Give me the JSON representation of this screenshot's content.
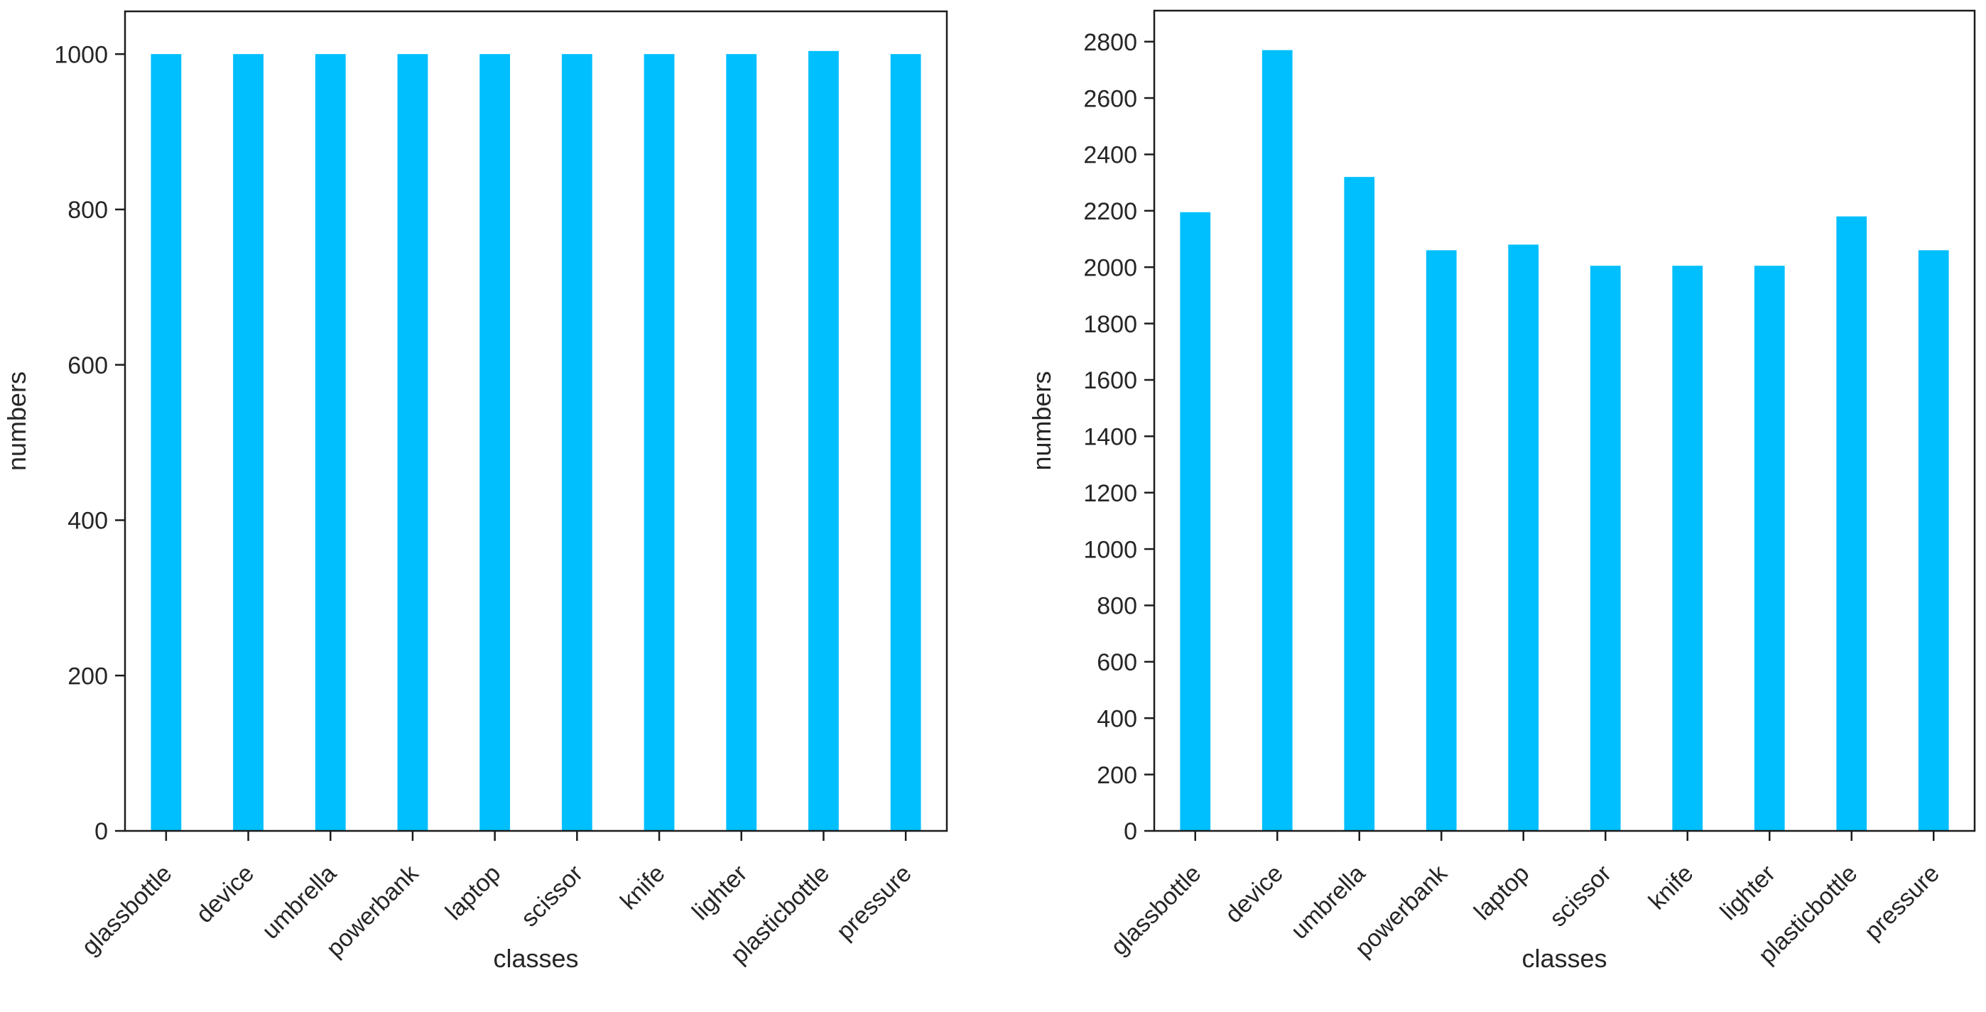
{
  "page": {
    "background": "#ffffff"
  },
  "styles": {
    "bar_color": "#00BFFF",
    "axis_color": "#1c1c1c",
    "text_color": "#262626"
  },
  "chart_data": [
    {
      "name": "class-counts-before",
      "type": "bar",
      "title": "",
      "xlabel": "classes",
      "ylabel": "numbers",
      "categories": [
        "glassbottle",
        "device",
        "umbrella",
        "powerbank",
        "laptop",
        "scissor",
        "knife",
        "lighter",
        "plasticbottle",
        "pressure"
      ],
      "values": [
        1000,
        1000,
        1000,
        1000,
        1000,
        1000,
        1000,
        1000,
        1004,
        1000
      ],
      "ylim": [
        0,
        1055
      ],
      "yticks": [
        0,
        200,
        400,
        600,
        800,
        1000
      ],
      "bar_color": "#00BFFF",
      "grid": false,
      "legend": "none",
      "x_tick_rotation": 45
    },
    {
      "name": "class-counts-after",
      "type": "bar",
      "title": "",
      "xlabel": "classes",
      "ylabel": "numbers",
      "categories": [
        "glassbottle",
        "device",
        "umbrella",
        "powerbank",
        "laptop",
        "scissor",
        "knife",
        "lighter",
        "plasticbottle",
        "pressure"
      ],
      "values": [
        2195,
        2770,
        2320,
        2060,
        2080,
        2005,
        2005,
        2005,
        2180,
        2060
      ],
      "ylim": [
        0,
        2910
      ],
      "yticks": [
        0,
        200,
        400,
        600,
        800,
        1000,
        1200,
        1400,
        1600,
        1800,
        2000,
        2200,
        2400,
        2600,
        2800
      ],
      "bar_color": "#00BFFF",
      "grid": false,
      "legend": "none",
      "x_tick_rotation": 45
    }
  ]
}
